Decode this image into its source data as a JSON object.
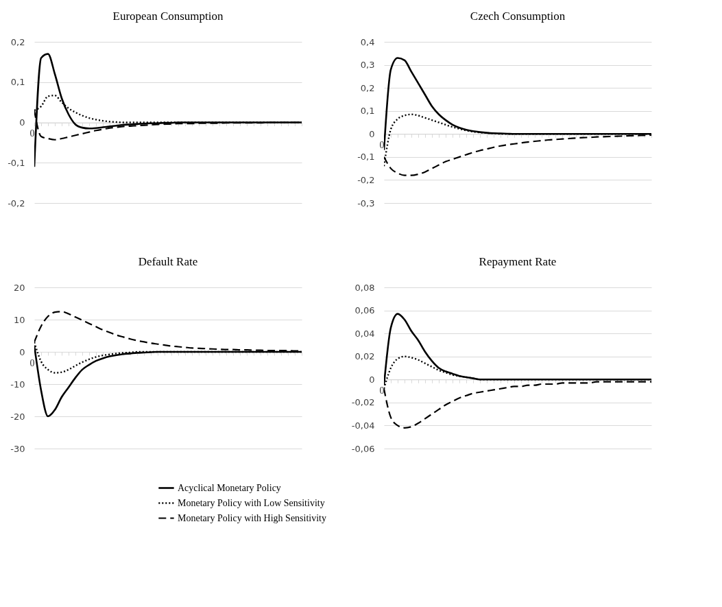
{
  "chart_data": [
    {
      "type": "line",
      "title": "European Consumption",
      "categories": [
        "0",
        null,
        null,
        null,
        null,
        null,
        null,
        null,
        null,
        null,
        null,
        null,
        null,
        null,
        null,
        null,
        null,
        null,
        null,
        null,
        null,
        null,
        null,
        null,
        null,
        null,
        null,
        null,
        null,
        null,
        null,
        null,
        null,
        null,
        null,
        null,
        null,
        null,
        null,
        null
      ],
      "ylim": [
        -0.2,
        0.2
      ],
      "yticks": [
        {
          "value": -0.2,
          "label": "-0,2"
        },
        {
          "value": -0.1,
          "label": "-0,1"
        },
        0,
        {
          "value": 0.1,
          "label": "0,1"
        },
        {
          "value": 0.2,
          "label": "0,2"
        }
      ],
      "grid": "y",
      "series": [
        {
          "color": "#000000",
          "line_style": "solid",
          "values": [
            -0.11,
            0.16,
            0.17,
            0.12,
            0.06,
            0.02,
            -0.005,
            -0.013,
            -0.015,
            -0.014,
            -0.012,
            -0.01,
            -0.008,
            -0.006,
            -0.005,
            -0.004,
            -0.003,
            -0.002,
            -0.002,
            -0.001,
            -0.001,
            0,
            0,
            0,
            0,
            0,
            0,
            0,
            0,
            0,
            0,
            0,
            0,
            0,
            0,
            0,
            0,
            0,
            0,
            0
          ]
        },
        {
          "color": "#000000",
          "line_style": "dotted",
          "values": [
            0.03,
            0.04,
            0.065,
            0.067,
            0.05,
            0.035,
            0.025,
            0.017,
            0.011,
            0.007,
            0.004,
            0.002,
            0.001,
            0,
            0,
            0,
            0,
            0,
            0,
            0,
            0,
            0,
            0,
            0,
            0,
            0,
            0,
            0,
            0,
            0,
            0,
            0,
            0,
            0,
            0,
            0,
            0,
            0,
            0,
            0
          ]
        },
        {
          "color": "#000000",
          "line_style": "dashed",
          "values": [
            0.03,
            -0.035,
            -0.04,
            -0.043,
            -0.04,
            -0.036,
            -0.032,
            -0.028,
            -0.024,
            -0.02,
            -0.017,
            -0.014,
            -0.012,
            -0.01,
            -0.009,
            -0.008,
            -0.007,
            -0.006,
            -0.005,
            -0.004,
            -0.004,
            -0.003,
            -0.003,
            -0.003,
            -0.002,
            -0.002,
            -0.002,
            -0.002,
            -0.001,
            -0.001,
            -0.001,
            -0.001,
            -0.001,
            -0.001,
            0,
            0,
            0,
            0,
            0,
            0
          ]
        }
      ]
    },
    {
      "type": "line",
      "title": "Czech Consumption",
      "categories": [
        "0",
        null,
        null,
        null,
        null,
        null,
        null,
        null,
        null,
        null,
        null,
        null,
        null,
        null,
        null,
        null,
        null,
        null,
        null,
        null,
        null,
        null,
        null,
        null,
        null,
        null,
        null,
        null,
        null,
        null,
        null,
        null,
        null,
        null,
        null,
        null,
        null,
        null,
        null,
        null
      ],
      "ylim": [
        -0.3,
        0.4
      ],
      "yticks": [
        {
          "value": -0.3,
          "label": "-0,3"
        },
        {
          "value": -0.2,
          "label": "-0,2"
        },
        {
          "value": -0.1,
          "label": "-0,1"
        },
        0,
        {
          "value": 0.1,
          "label": "0,1"
        },
        {
          "value": 0.2,
          "label": "0,2"
        },
        {
          "value": 0.3,
          "label": "0,3"
        },
        {
          "value": 0.4,
          "label": "0,4"
        }
      ],
      "grid": "y",
      "series": [
        {
          "color": "#000000",
          "line_style": "solid",
          "values": [
            -0.07,
            0.28,
            0.33,
            0.32,
            0.27,
            0.22,
            0.17,
            0.12,
            0.085,
            0.06,
            0.04,
            0.027,
            0.018,
            0.012,
            0.008,
            0.005,
            0.003,
            0.002,
            0.001,
            0,
            0,
            0,
            0,
            0,
            0,
            0,
            0,
            0,
            0,
            0,
            0,
            0,
            0,
            0,
            0,
            0,
            0,
            0,
            0,
            0
          ]
        },
        {
          "color": "#000000",
          "line_style": "dotted",
          "values": [
            -0.14,
            0.02,
            0.065,
            0.08,
            0.085,
            0.08,
            0.07,
            0.06,
            0.05,
            0.04,
            0.03,
            0.022,
            0.015,
            0.01,
            0.006,
            0.004,
            0.002,
            0,
            0,
            0,
            0,
            0,
            0,
            0,
            0,
            0,
            0,
            0,
            0,
            0,
            0,
            0,
            0,
            0,
            0,
            0,
            0,
            0,
            0,
            0
          ]
        },
        {
          "color": "#000000",
          "line_style": "dashed",
          "values": [
            -0.1,
            -0.15,
            -0.17,
            -0.18,
            -0.18,
            -0.175,
            -0.165,
            -0.15,
            -0.135,
            -0.12,
            -0.11,
            -0.1,
            -0.09,
            -0.08,
            -0.072,
            -0.065,
            -0.058,
            -0.052,
            -0.047,
            -0.043,
            -0.039,
            -0.035,
            -0.032,
            -0.029,
            -0.026,
            -0.024,
            -0.022,
            -0.02,
            -0.018,
            -0.016,
            -0.015,
            -0.013,
            -0.012,
            -0.011,
            -0.01,
            -0.009,
            -0.008,
            -0.007,
            -0.006,
            -0.005
          ]
        }
      ]
    },
    {
      "type": "line",
      "title": "Default Rate",
      "categories": [
        "0",
        null,
        null,
        null,
        null,
        null,
        null,
        null,
        null,
        null,
        null,
        null,
        null,
        null,
        null,
        null,
        null,
        null,
        null,
        null,
        null,
        null,
        null,
        null,
        null,
        null,
        null,
        null,
        null,
        null,
        null,
        null,
        null,
        null,
        null,
        null,
        null,
        null,
        null,
        null
      ],
      "ylim": [
        -30,
        20
      ],
      "yticks": [
        -30,
        -20,
        -10,
        0,
        10,
        20
      ],
      "grid": "y",
      "series": [
        {
          "color": "#000000",
          "line_style": "solid",
          "values": [
            2,
            -12,
            -20,
            -18,
            -14,
            -11,
            -8,
            -5.5,
            -4,
            -2.8,
            -2,
            -1.4,
            -1,
            -0.7,
            -0.5,
            -0.3,
            -0.2,
            -0.1,
            0,
            0,
            0,
            0,
            0,
            0,
            0,
            0,
            0,
            0,
            0,
            0,
            0,
            0,
            0,
            0,
            0,
            0,
            0,
            0,
            0,
            0
          ]
        },
        {
          "color": "#000000",
          "line_style": "dotted",
          "values": [
            3,
            -3,
            -5.5,
            -6.5,
            -6.3,
            -5.5,
            -4.3,
            -3.2,
            -2.3,
            -1.6,
            -1.1,
            -0.8,
            -0.5,
            -0.3,
            -0.2,
            0,
            0,
            0,
            0,
            0,
            0,
            0,
            0,
            0,
            0,
            0,
            0,
            0,
            0,
            0,
            0,
            0,
            0,
            0,
            0,
            0,
            0,
            0,
            0,
            0
          ]
        },
        {
          "color": "#000000",
          "line_style": "dashed",
          "values": [
            3,
            8,
            11,
            12.3,
            12.5,
            11.8,
            10.8,
            9.8,
            8.8,
            7.8,
            6.8,
            6,
            5.2,
            4.6,
            4,
            3.5,
            3.1,
            2.7,
            2.4,
            2.1,
            1.8,
            1.6,
            1.4,
            1.2,
            1.1,
            1,
            0.9,
            0.8,
            0.7,
            0.7,
            0.6,
            0.6,
            0.5,
            0.5,
            0.4,
            0.4,
            0.4,
            0.4,
            0.3,
            0.3
          ]
        }
      ]
    },
    {
      "type": "line",
      "title": "Repayment Rate",
      "categories": [
        "0",
        null,
        null,
        null,
        null,
        null,
        null,
        null,
        null,
        null,
        null,
        null,
        null,
        null,
        null,
        null,
        null,
        null,
        null,
        null,
        null,
        null,
        null,
        null,
        null,
        null,
        null,
        null,
        null,
        null,
        null,
        null,
        null,
        null,
        null,
        null,
        null,
        null,
        null,
        null
      ],
      "ylim": [
        -0.06,
        0.08
      ],
      "yticks": [
        {
          "value": -0.06,
          "label": "-0,06"
        },
        {
          "value": -0.04,
          "label": "-0,04"
        },
        {
          "value": -0.02,
          "label": "-0,02"
        },
        0,
        {
          "value": 0.02,
          "label": "0,02"
        },
        {
          "value": 0.04,
          "label": "0,04"
        },
        {
          "value": 0.06,
          "label": "0,06"
        },
        {
          "value": 0.08,
          "label": "0,08"
        }
      ],
      "grid": "y",
      "legend": "bottom",
      "series": [
        {
          "name": "Acyclical Monetary Policy",
          "color": "#000000",
          "line_style": "solid",
          "values": [
            -0.005,
            0.045,
            0.057,
            0.052,
            0.042,
            0.034,
            0.024,
            0.016,
            0.01,
            0.007,
            0.005,
            0.003,
            0.002,
            0.001,
            0,
            0,
            0,
            0,
            0,
            0,
            0,
            0,
            0,
            0,
            0,
            0,
            0,
            0,
            0,
            0,
            0,
            0,
            0,
            0,
            0,
            0,
            0,
            0,
            0,
            0
          ]
        },
        {
          "name": "Monetary Policy with Low Sensitivity",
          "color": "#000000",
          "line_style": "dotted",
          "values": [
            -0.008,
            0.01,
            0.018,
            0.02,
            0.019,
            0.017,
            0.014,
            0.011,
            0.008,
            0.006,
            0.004,
            0.003,
            0.002,
            0.001,
            0,
            0,
            0,
            0,
            0,
            0,
            0,
            0,
            0,
            0,
            0,
            0,
            0,
            0,
            0,
            0,
            0,
            0,
            0,
            0,
            0,
            0,
            0,
            0,
            0,
            0
          ]
        },
        {
          "name": "Monetary Policy with High Sensitivity",
          "color": "#000000",
          "line_style": "dashed",
          "values": [
            -0.008,
            -0.033,
            -0.04,
            -0.042,
            -0.041,
            -0.038,
            -0.034,
            -0.03,
            -0.026,
            -0.022,
            -0.019,
            -0.016,
            -0.014,
            -0.012,
            -0.011,
            -0.01,
            -0.009,
            -0.008,
            -0.007,
            -0.006,
            -0.006,
            -0.005,
            -0.005,
            -0.004,
            -0.004,
            -0.004,
            -0.003,
            -0.003,
            -0.003,
            -0.003,
            -0.003,
            -0.002,
            -0.002,
            -0.002,
            -0.002,
            -0.002,
            -0.002,
            -0.002,
            -0.002,
            -0.002
          ]
        }
      ]
    }
  ]
}
